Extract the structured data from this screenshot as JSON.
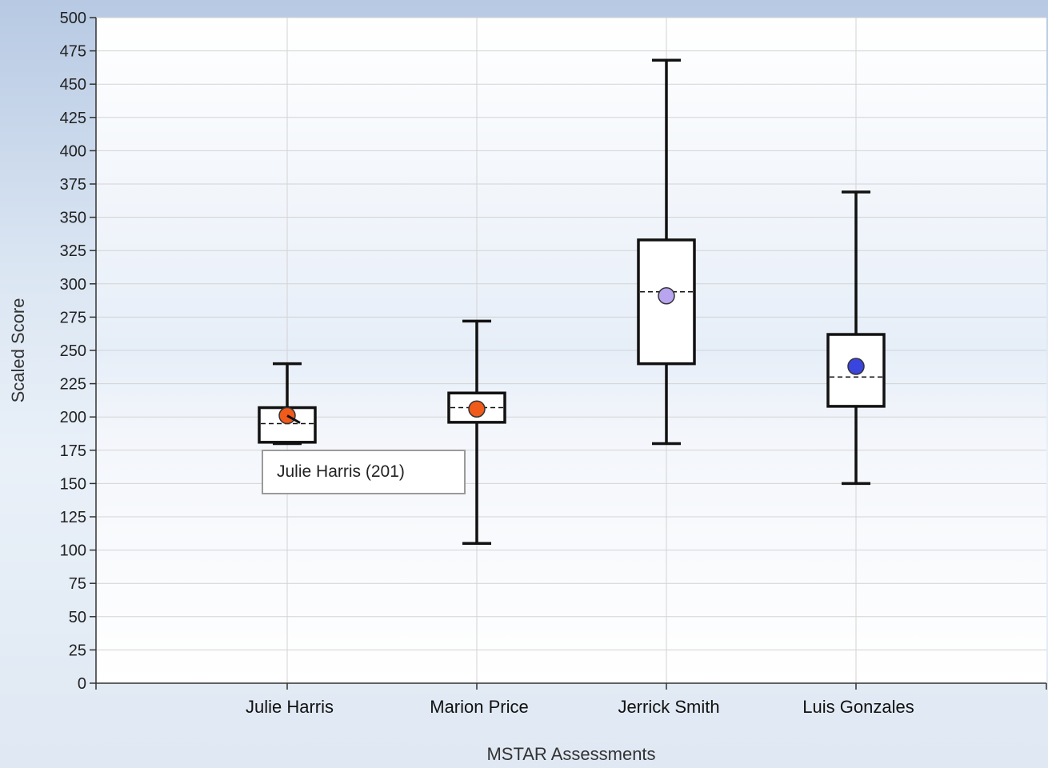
{
  "chart_data": {
    "type": "box",
    "xlabel": "MSTAR Assessments",
    "ylabel": "Scaled Score",
    "ylim": [
      0,
      500
    ],
    "ytick_step": 25,
    "grid": true,
    "categories": [
      "Julie Harris",
      "Marion Price",
      "Jerrick Smith",
      "Luis Gonzales"
    ],
    "boxes": [
      {
        "name": "Julie Harris",
        "min": 180,
        "q1": 181,
        "median": 195,
        "q3": 207,
        "max": 240,
        "score": 201,
        "color": "#f05a1a"
      },
      {
        "name": "Marion Price",
        "min": 105,
        "q1": 196,
        "median": 207,
        "q3": 218,
        "max": 272,
        "score": 206,
        "color": "#f05a1a"
      },
      {
        "name": "Jerrick Smith",
        "min": 180,
        "q1": 240,
        "median": 294,
        "q3": 333,
        "max": 468,
        "score": 291,
        "color": "#b9a4f0"
      },
      {
        "name": "Luis Gonzales",
        "min": 150,
        "q1": 208,
        "median": 230,
        "q3": 262,
        "max": 369,
        "score": 238,
        "color": "#3a45e0"
      }
    ],
    "tooltip": {
      "text": "Julie Harris (201)",
      "category": "Julie Harris"
    }
  }
}
